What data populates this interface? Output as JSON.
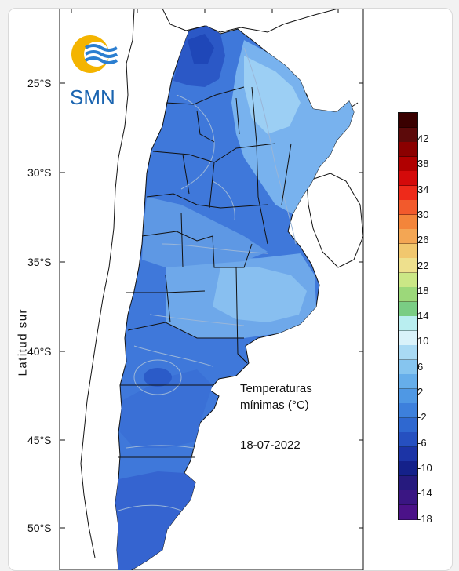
{
  "map": {
    "ylabel": "Latitud sur",
    "lat_ticks": [
      "25°S",
      "30°S",
      "35°S",
      "40°S",
      "45°S",
      "50°S"
    ],
    "title_line1": "Temperaturas",
    "title_line2": "mínimas (°C)",
    "date": "18-07-2022",
    "logo_text": "SMN",
    "colors": {
      "land_base": "#3d74d8",
      "land_light": "#6ea8ea",
      "land_dark": "#2a58c8",
      "boundary": "#111111",
      "isoline": "#9ab6d8"
    }
  },
  "legend": {
    "labels": [
      "42",
      "38",
      "34",
      "30",
      "26",
      "22",
      "18",
      "14",
      "10",
      "6",
      "2",
      "-2",
      "-6",
      "-10",
      "-14",
      "-18"
    ],
    "colors": [
      "#3a0000",
      "#5c0a0a",
      "#8b0000",
      "#b00000",
      "#d40a0a",
      "#ee2a1a",
      "#f25a2c",
      "#f3853a",
      "#f3a654",
      "#f1c76e",
      "#eee08d",
      "#cbe786",
      "#9cd87a",
      "#7acd84",
      "#b9eef0",
      "#d9f2fa",
      "#a9daf4",
      "#86c5ef",
      "#66aeea",
      "#4f98e4",
      "#3d80dc",
      "#2f68d0",
      "#2650c0",
      "#1c34a6",
      "#14218a",
      "#261a7e",
      "#3a1683",
      "#4b1288"
    ]
  }
}
